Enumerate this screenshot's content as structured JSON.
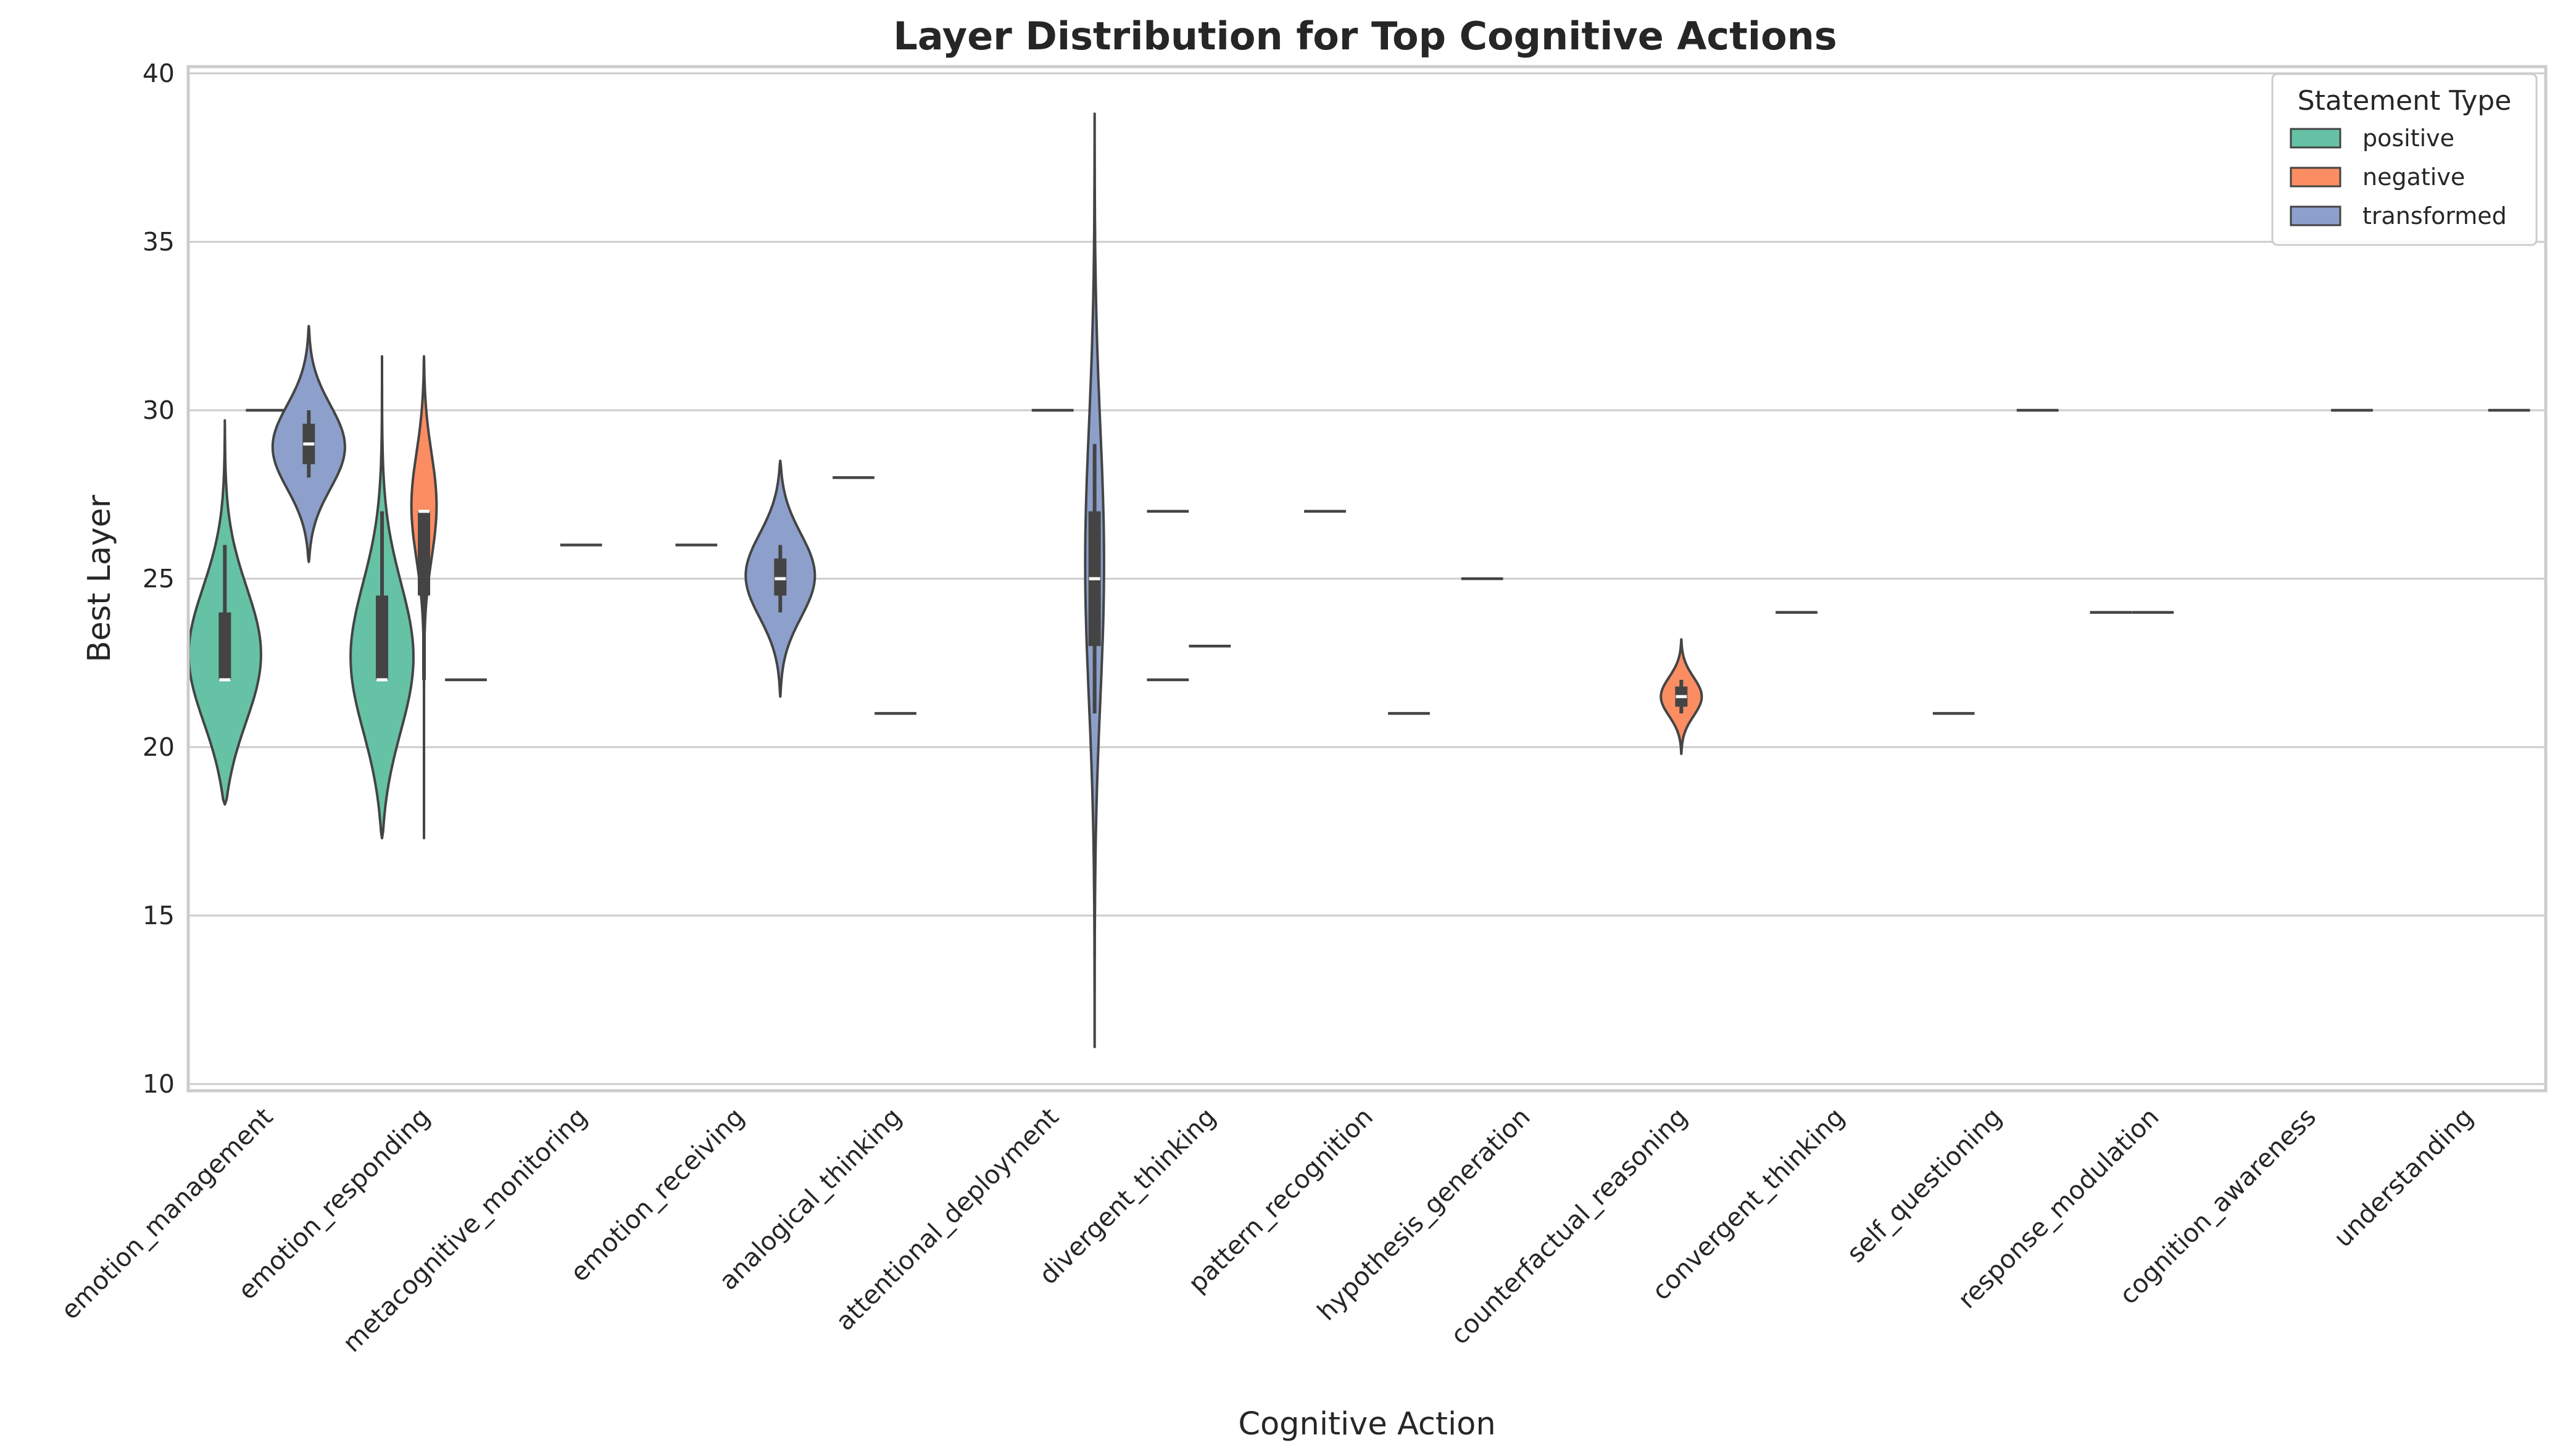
{
  "chart_data": {
    "type": "violin",
    "title": "Layer Distribution for Top Cognitive Actions",
    "xlabel": "Cognitive Action",
    "ylabel": "Best Layer",
    "ylim": [
      9.8,
      40.2
    ],
    "yticks": [
      10,
      15,
      20,
      25,
      30,
      35,
      40
    ],
    "grid": true,
    "legend": {
      "title": "Statement Type",
      "placement": "top-right"
    },
    "categories": [
      "emotion_management",
      "emotion_responding",
      "metacognitive_monitoring",
      "emotion_receiving",
      "analogical_thinking",
      "attentional_deployment",
      "divergent_thinking",
      "pattern_recognition",
      "hypothesis_generation",
      "counterfactual_reasoning",
      "convergent_thinking",
      "self_questioning",
      "response_modulation",
      "cognition_awareness",
      "understanding"
    ],
    "series": [
      {
        "name": "positive",
        "color": "#66c2a5"
      },
      {
        "name": "negative",
        "color": "#fc8d62"
      },
      {
        "name": "transformed",
        "color": "#8da0cb"
      }
    ],
    "distributions": [
      {
        "category": "emotion_management",
        "series": "positive",
        "min": 18.3,
        "max": 29.7,
        "q1": 22,
        "median": 22,
        "q3": 24,
        "whisker_low": 22,
        "whisker_high": 26,
        "mode": 22.6,
        "width": 0.23,
        "sigma": 2.1
      },
      {
        "category": "emotion_management",
        "series": "negative",
        "value": 30
      },
      {
        "category": "emotion_management",
        "series": "transformed",
        "min": 25.5,
        "max": 32.5,
        "q1": 28.4,
        "median": 29,
        "q3": 29.6,
        "whisker_low": 28,
        "whisker_high": 30,
        "mode": 28.9,
        "width": 0.23,
        "sigma": 1.3
      },
      {
        "category": "emotion_responding",
        "series": "positive",
        "min": 17.3,
        "max": 31.6,
        "q1": 22,
        "median": 22,
        "q3": 24.5,
        "whisker_low": 22,
        "whisker_high": 27,
        "mode": 22.5,
        "width": 0.2,
        "sigma": 2.3
      },
      {
        "category": "emotion_responding",
        "series": "negative",
        "min": 17.3,
        "max": 31.6,
        "q1": 24.5,
        "median": 27,
        "q3": 27,
        "whisker_low": 22,
        "whisker_high": 27,
        "mode": 27.3,
        "width": 0.08,
        "sigma": 1.6
      },
      {
        "category": "emotion_responding",
        "series": "transformed",
        "value": 22
      },
      {
        "category": "metacognitive_monitoring",
        "series": "negative",
        "value": 26
      },
      {
        "category": "emotion_receiving",
        "series": "transformed",
        "min": 21.5,
        "max": 28.5,
        "q1": 24.5,
        "median": 25,
        "q3": 25.6,
        "whisker_low": 24,
        "whisker_high": 26,
        "mode": 25.1,
        "width": 0.22,
        "sigma": 1.3
      },
      {
        "category": "emotion_receiving",
        "series": "positive",
        "value": 26
      },
      {
        "category": "analogical_thinking",
        "series": "positive",
        "value": 28
      },
      {
        "category": "analogical_thinking",
        "series": "negative",
        "value": 21
      },
      {
        "category": "attentional_deployment",
        "series": "negative",
        "value": 30
      },
      {
        "category": "attentional_deployment",
        "series": "transformed",
        "min": 11.1,
        "max": 38.8,
        "q1": 23,
        "median": 25,
        "q3": 27,
        "whisker_low": 21,
        "whisker_high": 29,
        "mode": 25.5,
        "width": 0.06,
        "sigma": 4.2
      },
      {
        "category": "divergent_thinking",
        "series": "positive",
        "value": 27
      },
      {
        "category": "divergent_thinking",
        "series": "positive",
        "value": 22
      },
      {
        "category": "divergent_thinking",
        "series": "negative",
        "value": 23
      },
      {
        "category": "pattern_recognition",
        "series": "positive",
        "value": 27
      },
      {
        "category": "pattern_recognition",
        "series": "transformed",
        "value": 21
      },
      {
        "category": "hypothesis_generation",
        "series": "positive",
        "value": 25
      },
      {
        "category": "counterfactual_reasoning",
        "series": "negative",
        "min": 19.8,
        "max": 23.2,
        "q1": 21.2,
        "median": 21.5,
        "q3": 21.8,
        "whisker_low": 21,
        "whisker_high": 22,
        "mode": 21.5,
        "width": 0.13,
        "sigma": 0.6
      },
      {
        "category": "convergent_thinking",
        "series": "positive",
        "value": 24
      },
      {
        "category": "self_questioning",
        "series": "positive",
        "value": 21
      },
      {
        "category": "self_questioning",
        "series": "transformed",
        "value": 30
      },
      {
        "category": "response_modulation",
        "series": "positive",
        "value": 24
      },
      {
        "category": "response_modulation",
        "series": "negative",
        "value": 24
      },
      {
        "category": "cognition_awareness",
        "series": "transformed",
        "value": 30
      },
      {
        "category": "understanding",
        "series": "transformed",
        "value": 30
      }
    ]
  }
}
